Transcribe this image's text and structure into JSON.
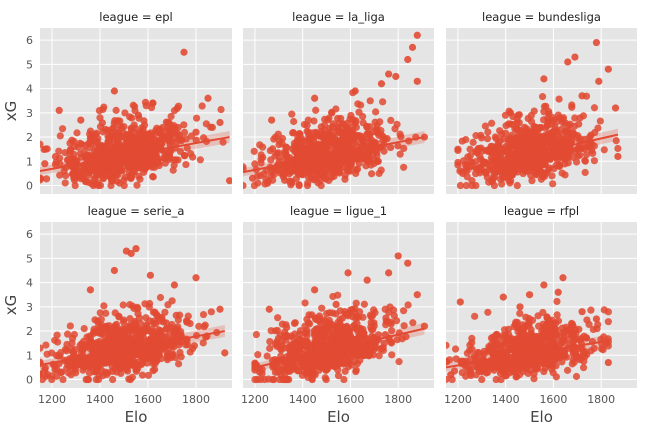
{
  "chart_data": {
    "type": "scatter",
    "layout": "facet-grid 2x3, shared axes, seaborn ggplot style, scatter with linear regression fit per facet",
    "xlabel": "Elo",
    "ylabel": "xG",
    "xlim": [
      1150,
      1950
    ],
    "ylim": [
      -0.35,
      6.5
    ],
    "xticks": [
      1200,
      1400,
      1600,
      1800
    ],
    "yticks": [
      0,
      1,
      2,
      3,
      4,
      5,
      6
    ],
    "grid": true,
    "colors": {
      "marker": "#e24a33",
      "background": "#e5e5e5",
      "grid": "#ffffff",
      "text": "#555555"
    },
    "facets": [
      {
        "title": "league = epl",
        "x_range": [
          1150,
          1940
        ],
        "y_center": 1.0,
        "y_spread": 0.75,
        "fit": [
          [
            1150,
            0.6
          ],
          [
            1940,
            2.0
          ]
        ],
        "sample_points": [
          [
            1750,
            5.5
          ],
          [
            1460,
            3.9
          ],
          [
            1850,
            3.6
          ],
          [
            1230,
            3.1
          ],
          [
            1620,
            3.4
          ],
          [
            1900,
            2.6
          ],
          [
            1170,
            0.9
          ],
          [
            1940,
            0.2
          ],
          [
            1320,
            2.7
          ],
          [
            1560,
            2.9
          ],
          [
            1800,
            2.2
          ]
        ]
      },
      {
        "title": "league = la_liga",
        "x_range": [
          1150,
          1910
        ],
        "y_center": 0.95,
        "y_spread": 0.75,
        "fit": [
          [
            1150,
            0.55
          ],
          [
            1910,
            2.0
          ]
        ],
        "sample_points": [
          [
            1880,
            6.2
          ],
          [
            1860,
            5.7
          ],
          [
            1840,
            5.2
          ],
          [
            1760,
            4.6
          ],
          [
            1790,
            4.5
          ],
          [
            1880,
            4.3
          ],
          [
            1730,
            4.2
          ],
          [
            1620,
            3.9
          ],
          [
            1450,
            3.6
          ],
          [
            1270,
            2.7
          ],
          [
            1910,
            2.0
          ],
          [
            1190,
            0.3
          ]
        ]
      },
      {
        "title": "league = bundesliga",
        "x_range": [
          1200,
          1870
        ],
        "y_center": 1.0,
        "y_spread": 0.75,
        "fit": [
          [
            1200,
            0.6
          ],
          [
            1870,
            2.1
          ]
        ],
        "sample_points": [
          [
            1780,
            5.9
          ],
          [
            1690,
            5.3
          ],
          [
            1660,
            5.1
          ],
          [
            1830,
            4.8
          ],
          [
            1560,
            4.4
          ],
          [
            1790,
            4.3
          ],
          [
            1720,
            3.7
          ],
          [
            1860,
            3.2
          ],
          [
            1420,
            3.0
          ],
          [
            1220,
            0.5
          ],
          [
            1870,
            1.2
          ]
        ]
      },
      {
        "title": "league = serie_a",
        "x_range": [
          1150,
          1920
        ],
        "y_center": 1.0,
        "y_spread": 0.75,
        "fit": [
          [
            1150,
            0.6
          ],
          [
            1920,
            2.0
          ]
        ],
        "sample_points": [
          [
            1550,
            5.4
          ],
          [
            1510,
            5.3
          ],
          [
            1530,
            5.2
          ],
          [
            1460,
            4.5
          ],
          [
            1610,
            4.3
          ],
          [
            1800,
            4.2
          ],
          [
            1360,
            3.7
          ],
          [
            1710,
            3.9
          ],
          [
            1900,
            2.9
          ],
          [
            1170,
            0.4
          ],
          [
            1920,
            1.1
          ]
        ]
      },
      {
        "title": "league = ligue_1",
        "x_range": [
          1200,
          1910
        ],
        "y_center": 0.95,
        "y_spread": 0.75,
        "fit": [
          [
            1200,
            0.5
          ],
          [
            1910,
            2.1
          ]
        ],
        "sample_points": [
          [
            1800,
            5.1
          ],
          [
            1840,
            4.8
          ],
          [
            1760,
            4.4
          ],
          [
            1590,
            4.4
          ],
          [
            1670,
            4.1
          ],
          [
            1450,
            3.7
          ],
          [
            1880,
            3.5
          ],
          [
            1260,
            2.9
          ],
          [
            1910,
            2.2
          ],
          [
            1220,
            0.3
          ],
          [
            1540,
            3.1
          ]
        ]
      },
      {
        "title": "league = rfpl",
        "x_range": [
          1150,
          1830
        ],
        "y_center": 0.85,
        "y_spread": 0.65,
        "fit": [
          [
            1150,
            0.5
          ],
          [
            1830,
            1.6
          ]
        ],
        "sample_points": [
          [
            1640,
            4.2
          ],
          [
            1560,
            3.9
          ],
          [
            1620,
            3.6
          ],
          [
            1390,
            3.4
          ],
          [
            1500,
            3.5
          ],
          [
            1210,
            3.2
          ],
          [
            1720,
            2.8
          ],
          [
            1830,
            0.7
          ],
          [
            1170,
            0.2
          ],
          [
            1460,
            3.0
          ],
          [
            1780,
            2.5
          ]
        ]
      }
    ]
  }
}
